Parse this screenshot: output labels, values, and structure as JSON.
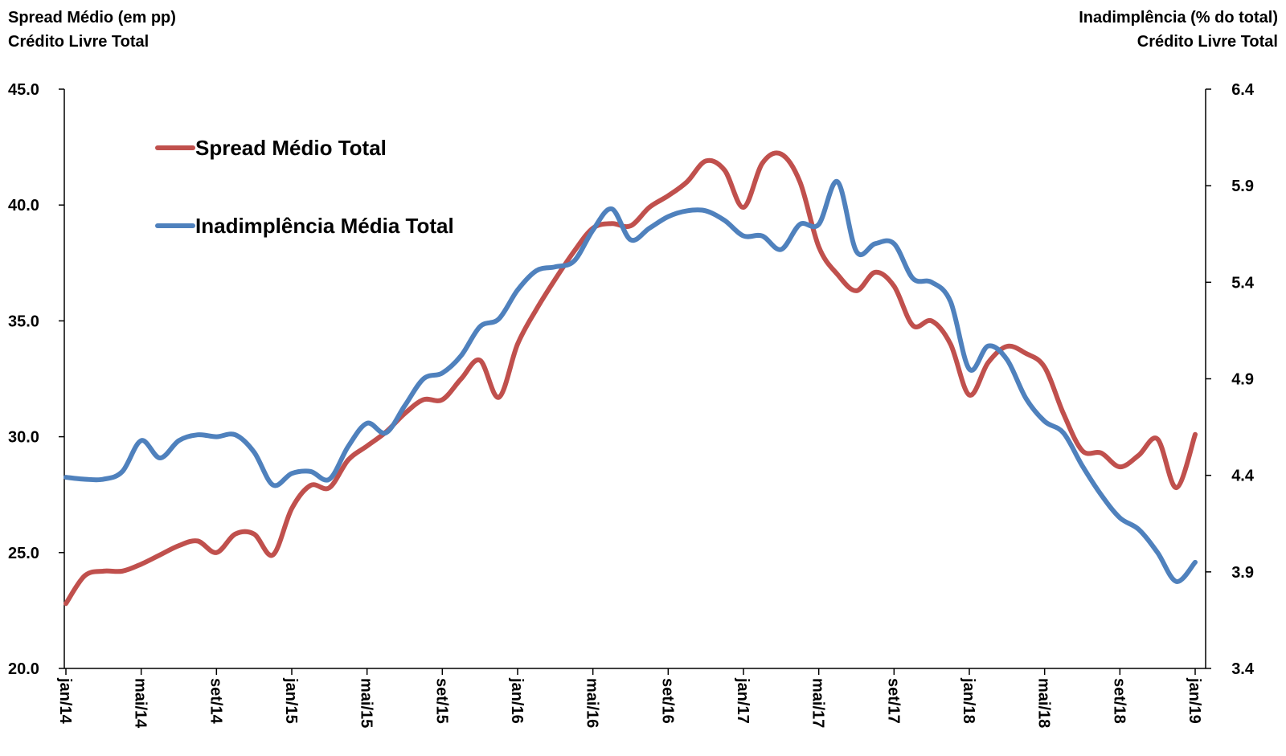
{
  "chart_data": {
    "type": "line",
    "ylabel": [
      "Spread Médio (em pp)",
      "Crédito Livre Total"
    ],
    "y2label": [
      "Inadimplência (% do total)",
      "Crédito Livre Total"
    ],
    "categories": [
      "jan/14",
      null,
      null,
      null,
      "mai/14",
      null,
      null,
      null,
      "set/14",
      null,
      null,
      null,
      "jan/15",
      null,
      null,
      null,
      "mai/15",
      null,
      null,
      null,
      "set/15",
      null,
      null,
      null,
      "jan/16",
      null,
      null,
      null,
      "mai/16",
      null,
      null,
      null,
      "set/16",
      null,
      null,
      null,
      "jan/17",
      null,
      null,
      null,
      "mai/17",
      null,
      null,
      null,
      "set/17",
      null,
      null,
      null,
      "jan/18",
      null,
      null,
      null,
      "mai/18",
      null,
      null,
      null,
      "set/18",
      null,
      null,
      null,
      "jan/19"
    ],
    "series": [
      {
        "name": "Spread Médio Total",
        "color": "#c0504d",
        "values": [
          22.8,
          24.0,
          24.2,
          24.2,
          24.5,
          24.9,
          25.3,
          25.5,
          25.0,
          25.8,
          25.8,
          24.9,
          26.9,
          27.9,
          27.8,
          29.0,
          29.6,
          30.2,
          31.0,
          31.6,
          31.6,
          32.5,
          33.3,
          31.7,
          34.0,
          35.5,
          36.8,
          38.0,
          39.0,
          39.2,
          39.1,
          39.9,
          40.4,
          41.0,
          41.9,
          41.5,
          39.9,
          41.8,
          42.2,
          41.0,
          38.2,
          37.0,
          36.3,
          37.1,
          36.5,
          34.8,
          35.0,
          34.0,
          31.8,
          33.2,
          33.9,
          33.6,
          33.0,
          31.0,
          29.4,
          29.3,
          28.7,
          29.2,
          29.9,
          27.8,
          30.1
        ]
      },
      {
        "name": "Inadimplência Média Total",
        "color": "#4f81bd",
        "axis": "y2",
        "values": [
          4.39,
          4.38,
          4.38,
          4.42,
          4.58,
          4.49,
          4.58,
          4.61,
          4.6,
          4.61,
          4.52,
          4.35,
          4.41,
          4.42,
          4.38,
          4.55,
          4.67,
          4.62,
          4.76,
          4.9,
          4.93,
          5.02,
          5.17,
          5.21,
          5.36,
          5.46,
          5.48,
          5.51,
          5.67,
          5.78,
          5.62,
          5.68,
          5.74,
          5.77,
          5.77,
          5.72,
          5.64,
          5.64,
          5.57,
          5.7,
          5.7,
          5.92,
          5.56,
          5.6,
          5.6,
          5.42,
          5.4,
          5.3,
          4.95,
          5.07,
          5.0,
          4.8,
          4.68,
          4.62,
          4.45,
          4.3,
          4.18,
          4.12,
          4.0,
          3.85,
          3.95
        ]
      }
    ],
    "ylim": [
      20,
      45
    ],
    "yticks": [
      {
        "value": 20,
        "label": "20.0"
      },
      {
        "value": 25,
        "label": "25.0"
      },
      {
        "value": 30,
        "label": "30.0"
      },
      {
        "value": 35,
        "label": "35.0"
      },
      {
        "value": 40,
        "label": "40.0"
      },
      {
        "value": 45,
        "label": "45.0"
      }
    ],
    "y2lim": [
      3.4,
      6.4
    ],
    "y2ticks": [
      3.4,
      3.9,
      4.4,
      4.9,
      5.4,
      5.9,
      6.4
    ],
    "legend": "upper left"
  }
}
